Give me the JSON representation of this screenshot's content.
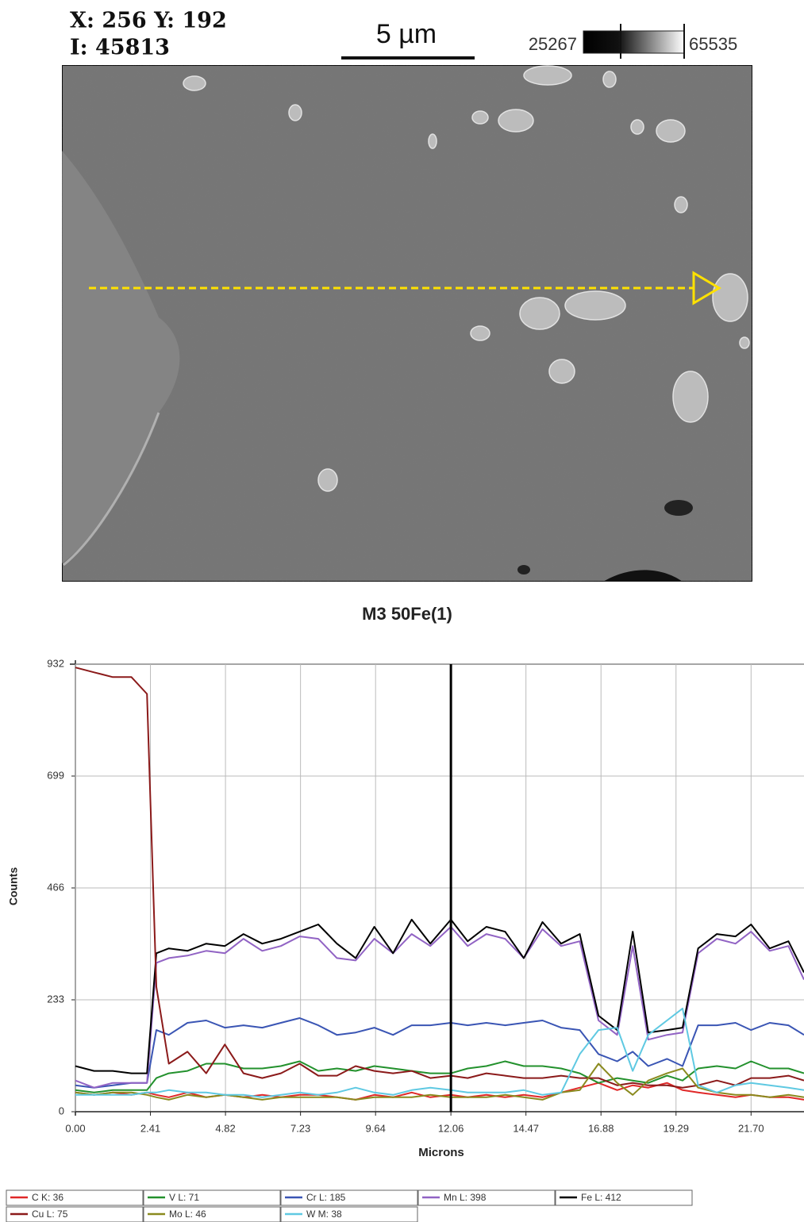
{
  "sem_header": {
    "coordinates": "X: 256 Y: 192",
    "intensity": "I: 45813",
    "scale_bar": "5 µm",
    "range_min": "25267",
    "range_max": "65535"
  },
  "chart_data": {
    "type": "line",
    "title": "M3 50Fe(1)",
    "x_label": "Microns",
    "y_label": "Counts",
    "x": [
      0,
      0.6,
      1.2,
      1.8,
      2.3,
      2.6,
      3.0,
      3.6,
      4.2,
      4.8,
      5.4,
      6.0,
      6.6,
      7.2,
      7.8,
      8.4,
      9.0,
      9.6,
      10.2,
      10.8,
      11.4,
      12.06,
      12.6,
      13.2,
      13.8,
      14.4,
      15.0,
      15.6,
      16.2,
      16.8,
      17.4,
      17.9,
      18.4,
      19.0,
      19.5,
      20.0,
      20.6,
      21.2,
      21.7,
      22.3,
      22.9,
      23.4
    ],
    "xlim": [
      0,
      23.4
    ],
    "xticks": [
      {
        "value": 0,
        "label": "0.00"
      },
      2.41,
      4.82,
      7.23,
      9.64,
      12.06,
      14.47,
      16.88,
      19.29,
      {
        "value": 21.7,
        "label": "21.70"
      }
    ],
    "ylim": [
      0,
      932
    ],
    "yticks": [
      0,
      233,
      466,
      699,
      932
    ],
    "grid": true,
    "cursor_x": 12.06,
    "legend": "bottom",
    "series": [
      {
        "name": "C K: 36",
        "color": "#e02828",
        "values": [
          40,
          35,
          40,
          35,
          40,
          35,
          30,
          40,
          30,
          35,
          30,
          35,
          30,
          35,
          35,
          30,
          25,
          35,
          30,
          40,
          30,
          35,
          30,
          35,
          30,
          35,
          30,
          40,
          50,
          60,
          45,
          55,
          50,
          60,
          45,
          40,
          35,
          30,
          35,
          30,
          30,
          25
        ]
      },
      {
        "name": "V L: 71",
        "color": "#23912d",
        "values": [
          45,
          40,
          45,
          45,
          45,
          70,
          80,
          85,
          100,
          100,
          90,
          90,
          95,
          105,
          85,
          90,
          85,
          95,
          90,
          85,
          80,
          80,
          90,
          95,
          105,
          95,
          95,
          90,
          80,
          60,
          70,
          65,
          60,
          75,
          65,
          90,
          95,
          90,
          105,
          90,
          90,
          80
        ]
      },
      {
        "name": "Cr L: 185",
        "color": "#3a55b4",
        "values": [
          55,
          50,
          55,
          60,
          60,
          170,
          160,
          185,
          190,
          175,
          180,
          175,
          185,
          195,
          180,
          160,
          165,
          175,
          160,
          180,
          180,
          185,
          180,
          185,
          180,
          185,
          190,
          175,
          170,
          120,
          105,
          125,
          95,
          110,
          95,
          180,
          180,
          185,
          170,
          185,
          180,
          160
        ]
      },
      {
        "name": "Mn L: 398",
        "color": "#9163c4",
        "values": [
          65,
          50,
          60,
          60,
          60,
          310,
          320,
          325,
          335,
          330,
          360,
          335,
          345,
          365,
          360,
          320,
          315,
          360,
          330,
          370,
          345,
          385,
          345,
          370,
          360,
          320,
          380,
          345,
          355,
          190,
          160,
          345,
          150,
          160,
          165,
          330,
          360,
          350,
          375,
          335,
          345,
          275
        ]
      },
      {
        "name": "Fe L: 412",
        "color": "#000000",
        "values": [
          95,
          85,
          85,
          80,
          80,
          330,
          340,
          335,
          350,
          345,
          370,
          350,
          360,
          375,
          390,
          350,
          320,
          385,
          330,
          400,
          350,
          400,
          355,
          385,
          375,
          320,
          395,
          350,
          370,
          200,
          170,
          375,
          165,
          170,
          175,
          340,
          370,
          365,
          390,
          340,
          355,
          290
        ]
      },
      {
        "name": "Cu L: 75",
        "color": "#8b1a1a",
        "values": [
          925,
          915,
          905,
          905,
          870,
          260,
          100,
          125,
          80,
          140,
          80,
          70,
          80,
          100,
          75,
          75,
          95,
          85,
          80,
          85,
          70,
          75,
          70,
          80,
          75,
          70,
          70,
          75,
          70,
          70,
          55,
          60,
          55,
          55,
          50,
          55,
          65,
          55,
          70,
          70,
          75,
          65
        ]
      },
      {
        "name": "Mo L: 46",
        "color": "#8a8a1e",
        "values": [
          40,
          35,
          40,
          40,
          35,
          30,
          25,
          35,
          30,
          35,
          30,
          25,
          30,
          30,
          30,
          30,
          25,
          30,
          30,
          30,
          35,
          30,
          30,
          30,
          35,
          30,
          25,
          40,
          45,
          100,
          60,
          35,
          65,
          80,
          90,
          50,
          40,
          35,
          35,
          30,
          35,
          30
        ]
      },
      {
        "name": "W M: 38",
        "color": "#5fc9e2",
        "values": [
          35,
          35,
          35,
          35,
          40,
          40,
          45,
          40,
          40,
          35,
          35,
          30,
          35,
          40,
          35,
          40,
          50,
          40,
          35,
          45,
          50,
          45,
          40,
          40,
          40,
          45,
          35,
          40,
          120,
          170,
          175,
          85,
          160,
          190,
          215,
          55,
          40,
          55,
          60,
          55,
          50,
          45
        ]
      }
    ]
  }
}
